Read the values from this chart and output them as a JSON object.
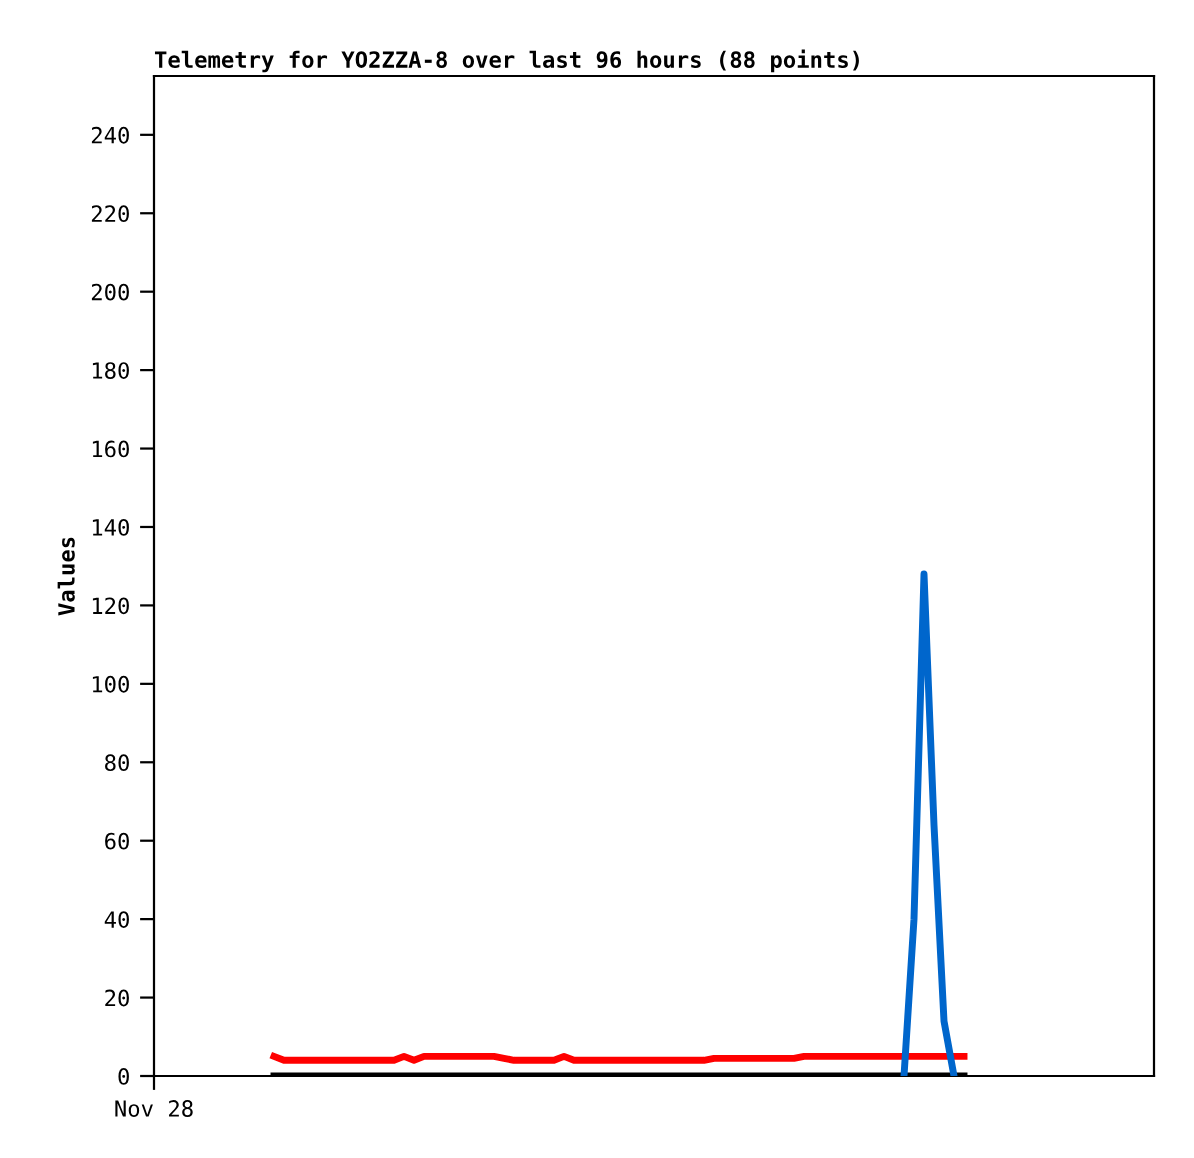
{
  "chart_data": {
    "type": "line",
    "title": "Telemetry for YO2ZZA-8 over last 96 hours (88 points)",
    "ylabel": "Values",
    "categories": [
      "Nov 28",
      null,
      null,
      null,
      null,
      null,
      null,
      null,
      null,
      null,
      null,
      null,
      null,
      null,
      null,
      null,
      null,
      null,
      null,
      null,
      null,
      null,
      null,
      null,
      null,
      null,
      null,
      null,
      null,
      null,
      null,
      null,
      null,
      null,
      null,
      null,
      null,
      null,
      null,
      null,
      null,
      null,
      null,
      null,
      null,
      null,
      null,
      null,
      null,
      null,
      null,
      null,
      null,
      null,
      null,
      null,
      null,
      null,
      null,
      null,
      null,
      null,
      null,
      null,
      null,
      null,
      null,
      null,
      null,
      null,
      null,
      null,
      null,
      null,
      null,
      null,
      null,
      null,
      null,
      null,
      null,
      null,
      null,
      null,
      null,
      null,
      null,
      null,
      null,
      null,
      null,
      null,
      null,
      null,
      null,
      null,
      null,
      null,
      null,
      null,
      null
    ],
    "ylim": [
      0,
      255
    ],
    "yticks": [
      0,
      20,
      40,
      60,
      80,
      100,
      120,
      140,
      160,
      180,
      200,
      220,
      240
    ],
    "grid": false,
    "legend": false,
    "marker": "none",
    "line_style": "solid",
    "series": [
      {
        "color": "#000000",
        "values": [
          null,
          null,
          null,
          null,
          null,
          null,
          null,
          null,
          null,
          null,
          null,
          null,
          0,
          0,
          0,
          0,
          0,
          0,
          0,
          0,
          0,
          0,
          0,
          0,
          0,
          0,
          0,
          0,
          0,
          0,
          0,
          0,
          0,
          0,
          0,
          0,
          0,
          0,
          0,
          0,
          0,
          0,
          0,
          0,
          0,
          0,
          0,
          0,
          0,
          0,
          0,
          0,
          0,
          0,
          0,
          0,
          0,
          0,
          0,
          0,
          0,
          0,
          0,
          0,
          0,
          0,
          0,
          0,
          0,
          0,
          0,
          0,
          0,
          0,
          0,
          0,
          0,
          0,
          0,
          0,
          0,
          0,
          null,
          null,
          null,
          null,
          null,
          null,
          null,
          null,
          null,
          null,
          null,
          null,
          null,
          null,
          null,
          null,
          null,
          null,
          null
        ]
      },
      {
        "color": "#ff0000",
        "values": [
          null,
          null,
          null,
          null,
          null,
          null,
          null,
          null,
          null,
          null,
          null,
          null,
          5,
          4,
          4,
          4,
          4,
          4,
          4,
          4,
          4,
          4,
          4,
          4,
          4,
          5,
          4,
          5,
          5,
          5,
          5,
          5,
          5,
          5,
          5,
          4.5,
          4,
          4,
          4,
          4,
          4,
          5,
          4,
          4,
          4,
          4,
          4,
          4,
          4,
          4,
          4,
          4,
          4,
          4,
          4,
          4,
          4.5,
          4.5,
          4.5,
          4.5,
          4.5,
          4.5,
          4.5,
          4.5,
          4.5,
          5,
          5,
          5,
          5,
          5,
          5,
          5,
          5,
          5,
          5,
          5,
          5,
          5,
          5,
          5,
          5,
          5,
          null,
          null,
          null,
          null,
          null,
          null,
          null,
          null,
          null,
          null,
          null,
          null,
          null,
          null,
          null,
          null,
          null,
          null,
          null
        ]
      },
      {
        "color": "#0066cc",
        "values": [
          null,
          null,
          null,
          null,
          null,
          null,
          null,
          null,
          null,
          null,
          null,
          null,
          null,
          null,
          null,
          null,
          null,
          null,
          null,
          null,
          null,
          null,
          null,
          null,
          null,
          null,
          null,
          null,
          null,
          null,
          null,
          null,
          null,
          null,
          null,
          null,
          null,
          null,
          null,
          null,
          null,
          null,
          null,
          null,
          null,
          null,
          null,
          null,
          null,
          null,
          null,
          null,
          null,
          null,
          null,
          null,
          null,
          null,
          null,
          null,
          null,
          null,
          null,
          null,
          null,
          null,
          null,
          null,
          null,
          null,
          null,
          null,
          null,
          null,
          null,
          0,
          40,
          128,
          64,
          14,
          0,
          null,
          null,
          null,
          null,
          null,
          null,
          null,
          null,
          null,
          null,
          null,
          null,
          null,
          null,
          null,
          null,
          null,
          null,
          null,
          null
        ]
      }
    ]
  }
}
